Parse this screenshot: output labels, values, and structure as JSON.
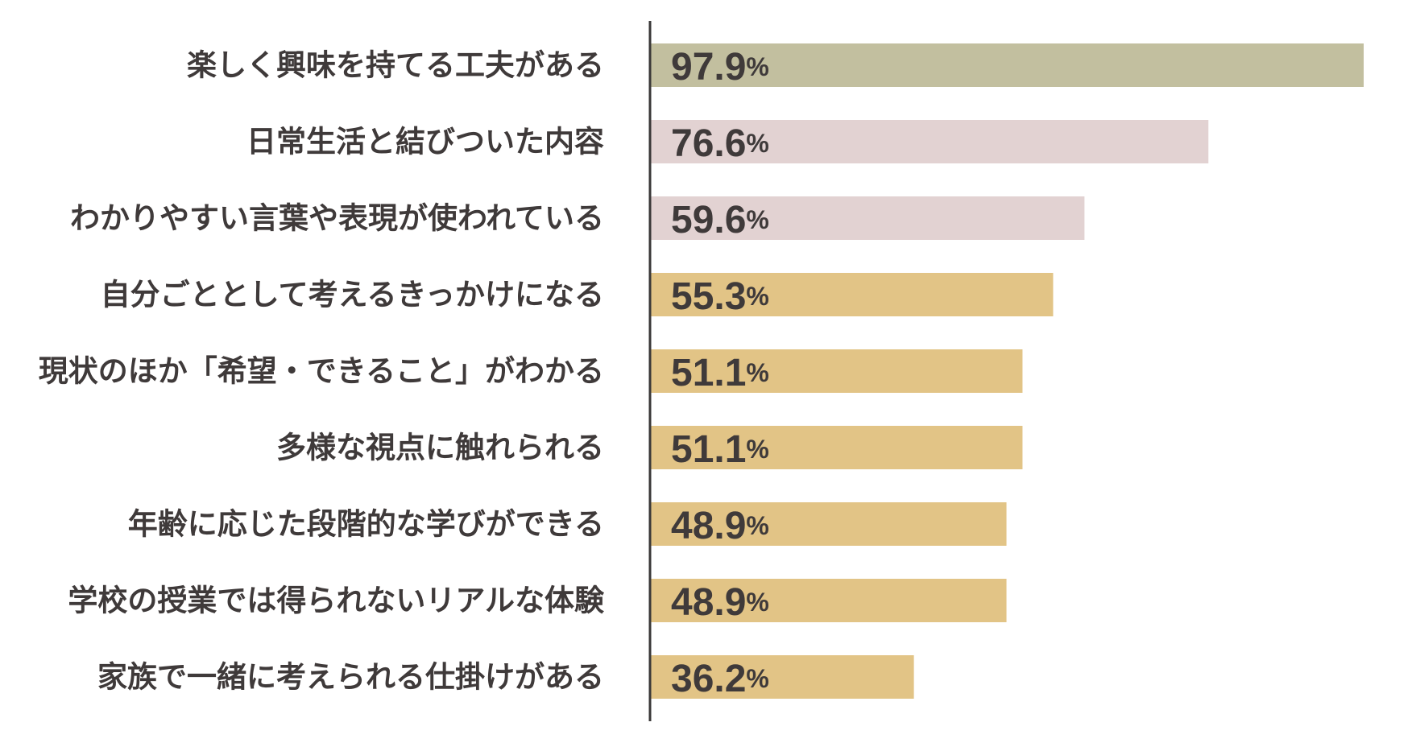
{
  "chart_data": {
    "type": "bar",
    "orientation": "horizontal",
    "categories": [
      "楽しく興味を持てる工夫がある",
      "日常生活と結びついた内容",
      "わかりやすい言葉や表現が使われている",
      "自分ごととして考えるきっかけになる",
      "現状のほか「希望・できること」がわかる",
      "多様な視点に触れられる",
      "年齢に応じた段階的な学びができる",
      "学校の授業では得られないリアルな体験",
      "家族で一緒に考えられる仕掛けがある"
    ],
    "values": [
      97.9,
      76.6,
      59.6,
      55.3,
      51.1,
      51.1,
      48.9,
      48.9,
      36.2
    ],
    "value_labels": [
      "97.9",
      "76.6",
      "59.6",
      "55.3",
      "51.1",
      "51.1",
      "48.9",
      "48.9",
      "36.2"
    ],
    "unit": "%",
    "bar_colors": [
      "#c2bf9f",
      "#e2d2d2",
      "#e2d2d2",
      "#e2c486",
      "#e2c486",
      "#e2c486",
      "#e2c486",
      "#e2c486",
      "#e2c486"
    ],
    "axis_color": "#3a3838",
    "text_color": "#3f3a3a",
    "xlim": [
      0,
      100
    ],
    "title": "",
    "xlabel": "",
    "ylabel": "",
    "grid": false,
    "legend": "none"
  }
}
